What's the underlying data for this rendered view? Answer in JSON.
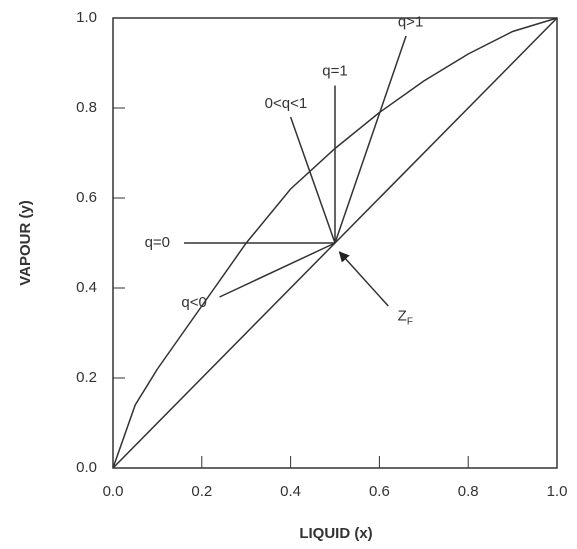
{
  "chart_data": {
    "type": "line",
    "x_label": "LIQUID (x)",
    "y_label": "VAPOUR (y)",
    "xlim": [
      0,
      1
    ],
    "ylim": [
      0,
      1
    ],
    "xticks": [
      {
        "value": 0,
        "label": "0.0"
      },
      {
        "value": 0.2,
        "label": "0.2"
      },
      {
        "value": 0.4,
        "label": "0.4"
      },
      {
        "value": 0.6,
        "label": "0.6"
      },
      {
        "value": 0.8,
        "label": "0.8"
      },
      {
        "value": 1,
        "label": "1.0"
      }
    ],
    "yticks": [
      {
        "value": 0,
        "label": "0.0"
      },
      {
        "value": 0.2,
        "label": "0.2"
      },
      {
        "value": 0.4,
        "label": "0.4"
      },
      {
        "value": 0.6,
        "label": "0.6"
      },
      {
        "value": 0.8,
        "label": "0.8"
      },
      {
        "value": 1,
        "label": "1.0"
      }
    ],
    "grid": false,
    "series": [
      {
        "color": "#333333",
        "x": [
          0,
          0.05,
          0.1,
          0.2,
          0.3,
          0.4,
          0.5,
          0.6,
          0.7,
          0.8,
          0.9,
          1.0
        ],
        "values": [
          0,
          0.14,
          0.22,
          0.36,
          0.5,
          0.62,
          0.71,
          0.79,
          0.86,
          0.92,
          0.97,
          1.0
        ]
      },
      {
        "color": "#333333",
        "x": [
          0,
          1
        ],
        "values": [
          0,
          1
        ]
      },
      {
        "color": "#333333",
        "label": "q>1",
        "x": [
          0.5,
          0.66
        ],
        "values": [
          0.5,
          0.96
        ]
      },
      {
        "color": "#333333",
        "label": "q=1",
        "x": [
          0.5,
          0.5
        ],
        "values": [
          0.5,
          0.85
        ]
      },
      {
        "color": "#333333",
        "label": "0<q<1",
        "x": [
          0.5,
          0.4
        ],
        "values": [
          0.5,
          0.78
        ]
      },
      {
        "color": "#333333",
        "label": "q=0",
        "x": [
          0.5,
          0.16
        ],
        "values": [
          0.5,
          0.5
        ]
      },
      {
        "color": "#333333",
        "label": "q<0",
        "x": [
          0.5,
          0.24
        ],
        "values": [
          0.5,
          0.38
        ]
      },
      {
        "color": "#333333",
        "label": "Z",
        "subscript": "F",
        "arrow": "start",
        "x": [
          0.51,
          0.62
        ],
        "values": [
          0.48,
          0.36
        ]
      }
    ]
  }
}
